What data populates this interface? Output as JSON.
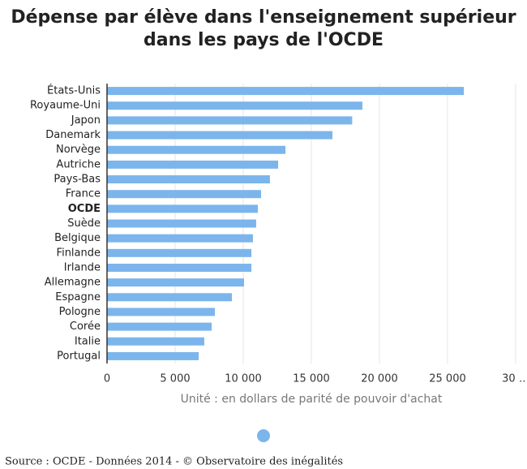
{
  "chart_data": {
    "type": "bar",
    "orientation": "horizontal",
    "title": [
      "Dépense par élève dans l'enseignement supérieur",
      "dans les pays de l'OCDE"
    ],
    "categories": [
      "États-Unis",
      "Royaume-Uni",
      "Japon",
      "Danemark",
      "Norvège",
      "Autriche",
      "Pays-Bas",
      "France",
      "OCDE",
      "Suède",
      "Belgique",
      "Finlande",
      "Irlande",
      "Allemagne",
      "Espagne",
      "Pologne",
      "Corée",
      "Italie",
      "Portugal"
    ],
    "values": [
      26200,
      18750,
      18000,
      16550,
      13100,
      12560,
      11960,
      11310,
      11070,
      10950,
      10710,
      10600,
      10600,
      10060,
      9170,
      7920,
      7680,
      7140,
      6730
    ],
    "bold_categories": [
      8
    ],
    "color": "#7cb5ec",
    "xlim": [
      0,
      30000
    ],
    "xticks": [
      0,
      {
        "value": 5000,
        "label": "5 000"
      },
      {
        "value": 10000,
        "label": "10 000"
      },
      {
        "value": 15000,
        "label": "15 000"
      },
      {
        "value": 20000,
        "label": "20 000"
      },
      {
        "value": 25000,
        "label": "25 000"
      },
      {
        "value": 30000,
        "label": "30 …"
      }
    ],
    "xlabel": "Unité : en dollars de parité de pouvoir d'achat",
    "grid": true,
    "source": "Source : OCDE - Données 2014 - © Observatoire des inégalités"
  }
}
